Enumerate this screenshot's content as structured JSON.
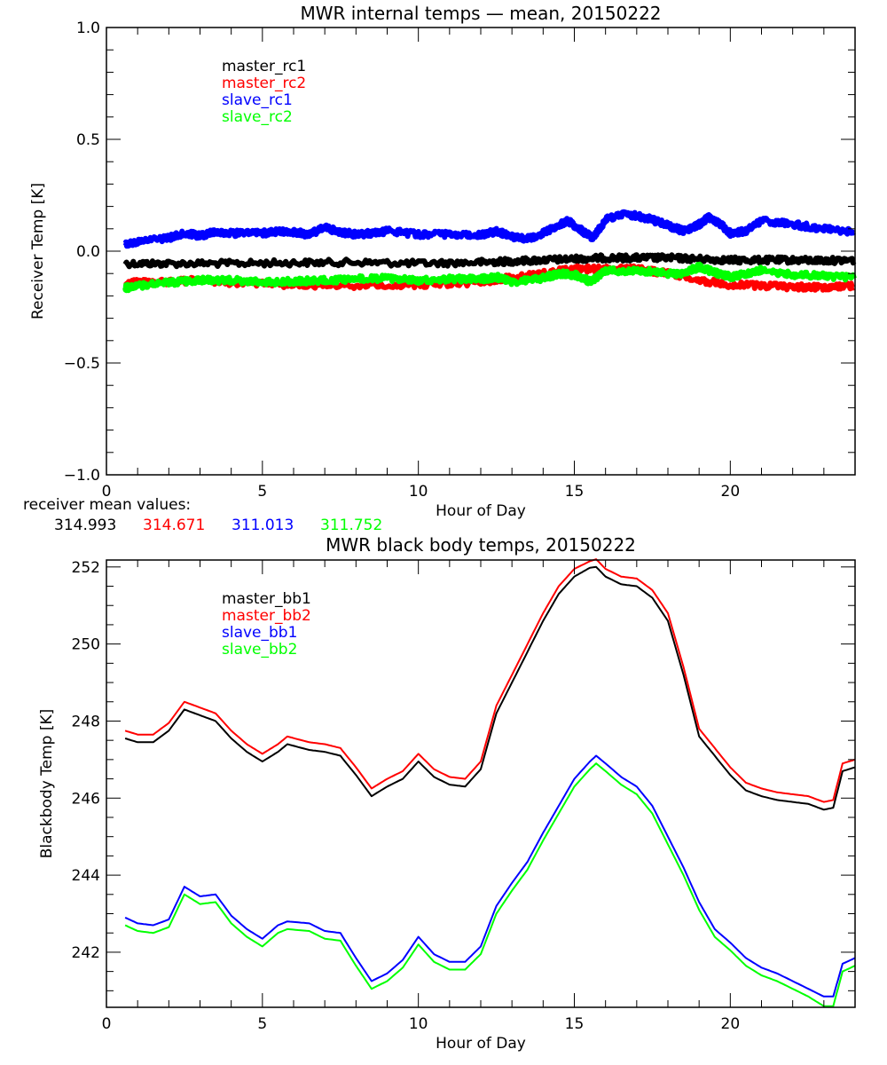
{
  "chart_data": [
    {
      "type": "line",
      "title": "MWR internal temps — mean, 20150222",
      "xlabel": "Hour of Day",
      "ylabel": "Receiver Temp [K]",
      "xlim": [
        0,
        24
      ],
      "ylim": [
        -1.0,
        1.0
      ],
      "xticks": [
        0,
        5,
        10,
        15,
        20
      ],
      "xtick_labels": [
        "0",
        "5",
        "10",
        "15",
        "20"
      ],
      "yticks": [
        -1.0,
        -0.5,
        0.0,
        0.5,
        1.0
      ],
      "ytick_labels": [
        "−1.0",
        "−0.5",
        "0.0",
        "0.5",
        "1.0"
      ],
      "grid": false,
      "legend_position": "top-left",
      "series": [
        {
          "name": "master_rc1",
          "color": "#000000",
          "x": [
            0.6,
            2,
            4,
            6,
            8,
            10,
            12,
            13,
            14,
            15,
            16,
            17,
            18,
            19,
            20,
            21,
            22,
            23,
            24
          ],
          "y": [
            -0.055,
            -0.055,
            -0.055,
            -0.052,
            -0.05,
            -0.055,
            -0.05,
            -0.045,
            -0.04,
            -0.035,
            -0.03,
            -0.03,
            -0.03,
            -0.035,
            -0.04,
            -0.04,
            -0.04,
            -0.042,
            -0.04
          ]
        },
        {
          "name": "master_rc2",
          "color": "#ff0000",
          "x": [
            0.6,
            1.5,
            3,
            4,
            6,
            8,
            10,
            12,
            12.5,
            13,
            14,
            15,
            16,
            17,
            18,
            19,
            20,
            21,
            22,
            23,
            24
          ],
          "y": [
            -0.14,
            -0.14,
            -0.13,
            -0.14,
            -0.15,
            -0.155,
            -0.15,
            -0.14,
            -0.125,
            -0.12,
            -0.1,
            -0.08,
            -0.08,
            -0.08,
            -0.1,
            -0.13,
            -0.15,
            -0.155,
            -0.16,
            -0.16,
            -0.155
          ]
        },
        {
          "name": "slave_rc1",
          "color": "#0000ff",
          "x": [
            0.6,
            1,
            2,
            2.5,
            3,
            3.5,
            4,
            5,
            5.5,
            6,
            6.5,
            7,
            7.5,
            8,
            8.5,
            9,
            10,
            11,
            12,
            12.5,
            13,
            13.5,
            14,
            14.5,
            14.8,
            15.2,
            15.6,
            16,
            16.5,
            17,
            17.5,
            18,
            18.5,
            19,
            19.3,
            19.7,
            20,
            20.5,
            21,
            22,
            23,
            24
          ],
          "y": [
            0.03,
            0.04,
            0.06,
            0.08,
            0.07,
            0.085,
            0.08,
            0.08,
            0.09,
            0.085,
            0.075,
            0.105,
            0.085,
            0.075,
            0.08,
            0.09,
            0.075,
            0.075,
            0.07,
            0.09,
            0.065,
            0.055,
            0.08,
            0.12,
            0.135,
            0.095,
            0.06,
            0.14,
            0.165,
            0.16,
            0.14,
            0.115,
            0.09,
            0.12,
            0.15,
            0.12,
            0.08,
            0.09,
            0.135,
            0.12,
            0.1,
            0.085
          ]
        },
        {
          "name": "slave_rc2",
          "color": "#00ff00",
          "x": [
            0.6,
            1,
            2,
            3,
            4,
            5,
            6,
            7,
            8,
            9,
            10,
            11,
            12,
            12.5,
            13,
            14,
            14.5,
            15,
            15.5,
            16,
            17,
            18,
            18.5,
            19,
            19.5,
            20,
            20.5,
            21,
            22,
            23,
            24
          ],
          "y": [
            -0.165,
            -0.155,
            -0.14,
            -0.13,
            -0.13,
            -0.14,
            -0.135,
            -0.13,
            -0.125,
            -0.12,
            -0.13,
            -0.125,
            -0.125,
            -0.115,
            -0.14,
            -0.12,
            -0.1,
            -0.105,
            -0.135,
            -0.09,
            -0.085,
            -0.1,
            -0.1,
            -0.07,
            -0.095,
            -0.115,
            -0.1,
            -0.085,
            -0.105,
            -0.11,
            -0.12
          ]
        }
      ],
      "annotations": {
        "label": "receiver mean values:",
        "values": [
          {
            "text": "314.993",
            "color": "#000000"
          },
          {
            "text": "314.671",
            "color": "#ff0000"
          },
          {
            "text": "311.013",
            "color": "#0000ff"
          },
          {
            "text": "311.752",
            "color": "#00ff00"
          }
        ]
      }
    },
    {
      "type": "line",
      "title": "MWR black body temps, 20150222",
      "xlabel": "Hour of Day",
      "ylabel": "Blackbody Temp [K]",
      "xlim": [
        0,
        24
      ],
      "ylim": [
        240.57,
        252.18
      ],
      "xticks": [
        0,
        5,
        10,
        15,
        20
      ],
      "xtick_labels": [
        "0",
        "5",
        "10",
        "15",
        "20"
      ],
      "yticks": [
        242,
        244,
        246,
        248,
        250,
        252
      ],
      "ytick_labels": [
        "242",
        "244",
        "246",
        "248",
        "250",
        "252"
      ],
      "grid": false,
      "legend_position": "top-left",
      "series": [
        {
          "name": "master_bb1",
          "color": "#000000",
          "x": [
            0.6,
            1,
            1.5,
            2,
            2.5,
            3,
            3.5,
            4,
            4.5,
            5,
            5.5,
            5.8,
            6.5,
            7,
            7.5,
            8,
            8.5,
            9,
            9.5,
            10,
            10.5,
            11,
            11.5,
            12,
            12.5,
            13,
            13.5,
            14,
            14.5,
            15,
            15.5,
            15.7,
            16,
            16.5,
            17,
            17.5,
            18,
            18.5,
            19,
            19.5,
            20,
            20.5,
            21,
            21.5,
            22,
            22.5,
            23,
            23.3,
            23.6,
            24
          ],
          "y": [
            247.55,
            247.45,
            247.45,
            247.75,
            248.3,
            248.15,
            248.0,
            247.55,
            247.2,
            246.95,
            247.2,
            247.4,
            247.25,
            247.2,
            247.1,
            246.6,
            246.05,
            246.3,
            246.5,
            246.95,
            246.55,
            246.35,
            246.3,
            246.75,
            248.2,
            249.0,
            249.8,
            250.6,
            251.3,
            251.75,
            251.98,
            252.0,
            251.75,
            251.55,
            251.5,
            251.2,
            250.6,
            249.2,
            247.6,
            247.1,
            246.6,
            246.2,
            246.05,
            245.95,
            245.9,
            245.85,
            245.7,
            245.75,
            246.7,
            246.8
          ]
        },
        {
          "name": "master_bb2",
          "color": "#ff0000",
          "x": [
            0.6,
            1,
            1.5,
            2,
            2.5,
            3,
            3.5,
            4,
            4.5,
            5,
            5.5,
            5.8,
            6.5,
            7,
            7.5,
            8,
            8.5,
            9,
            9.5,
            10,
            10.5,
            11,
            11.5,
            12,
            12.5,
            13,
            13.5,
            14,
            14.5,
            15,
            15.5,
            15.7,
            16,
            16.5,
            17,
            17.5,
            18,
            18.5,
            19,
            19.5,
            20,
            20.5,
            21,
            21.5,
            22,
            22.5,
            23,
            23.3,
            23.6,
            24
          ],
          "y": [
            247.75,
            247.65,
            247.65,
            247.95,
            248.5,
            248.35,
            248.2,
            247.75,
            247.4,
            247.15,
            247.4,
            247.6,
            247.45,
            247.4,
            247.3,
            246.8,
            246.25,
            246.5,
            246.7,
            247.15,
            246.75,
            246.55,
            246.5,
            246.95,
            248.4,
            249.2,
            250.0,
            250.8,
            251.5,
            251.95,
            252.15,
            252.2,
            251.95,
            251.75,
            251.7,
            251.4,
            250.8,
            249.4,
            247.8,
            247.3,
            246.8,
            246.4,
            246.25,
            246.15,
            246.1,
            246.05,
            245.9,
            245.95,
            246.9,
            247.0
          ]
        },
        {
          "name": "slave_bb1",
          "color": "#0000ff",
          "x": [
            0.6,
            1,
            1.5,
            2,
            2.5,
            3,
            3.5,
            4,
            4.5,
            5,
            5.5,
            5.8,
            6.5,
            7,
            7.5,
            8,
            8.5,
            9,
            9.5,
            10,
            10.5,
            11,
            11.5,
            12,
            12.5,
            13,
            13.5,
            14,
            14.5,
            15,
            15.5,
            15.7,
            16,
            16.5,
            17,
            17.5,
            18,
            18.5,
            19,
            19.5,
            20,
            20.5,
            21,
            21.5,
            22,
            22.5,
            23,
            23.3,
            23.6,
            24
          ],
          "y": [
            242.9,
            242.75,
            242.7,
            242.85,
            243.7,
            243.45,
            243.5,
            242.95,
            242.6,
            242.35,
            242.7,
            242.8,
            242.75,
            242.55,
            242.5,
            241.85,
            241.25,
            241.45,
            241.8,
            242.4,
            241.95,
            241.75,
            241.75,
            242.15,
            243.2,
            243.8,
            244.35,
            245.1,
            245.8,
            246.5,
            246.95,
            247.1,
            246.9,
            246.55,
            246.3,
            245.8,
            245.0,
            244.2,
            243.3,
            242.6,
            242.25,
            241.85,
            241.6,
            241.45,
            241.25,
            241.05,
            240.85,
            240.85,
            241.7,
            241.85
          ]
        },
        {
          "name": "slave_bb2",
          "color": "#00ff00",
          "x": [
            0.6,
            1,
            1.5,
            2,
            2.5,
            3,
            3.5,
            4,
            4.5,
            5,
            5.5,
            5.8,
            6.5,
            7,
            7.5,
            8,
            8.5,
            9,
            9.5,
            10,
            10.5,
            11,
            11.5,
            12,
            12.5,
            13,
            13.5,
            14,
            14.5,
            15,
            15.5,
            15.7,
            16,
            16.5,
            17,
            17.5,
            18,
            18.5,
            19,
            19.5,
            20,
            20.5,
            21,
            21.5,
            22,
            22.5,
            23,
            23.3,
            23.6,
            24
          ],
          "y": [
            242.7,
            242.55,
            242.5,
            242.65,
            243.5,
            243.25,
            243.3,
            242.75,
            242.4,
            242.15,
            242.5,
            242.6,
            242.55,
            242.35,
            242.3,
            241.65,
            241.05,
            241.25,
            241.6,
            242.2,
            241.75,
            241.55,
            241.55,
            241.95,
            243.0,
            243.6,
            244.15,
            244.9,
            245.6,
            246.3,
            246.75,
            246.9,
            246.7,
            246.35,
            246.1,
            245.6,
            244.8,
            244.0,
            243.1,
            242.4,
            242.05,
            241.65,
            241.4,
            241.25,
            241.05,
            240.85,
            240.6,
            240.6,
            241.5,
            241.65
          ]
        }
      ]
    }
  ]
}
